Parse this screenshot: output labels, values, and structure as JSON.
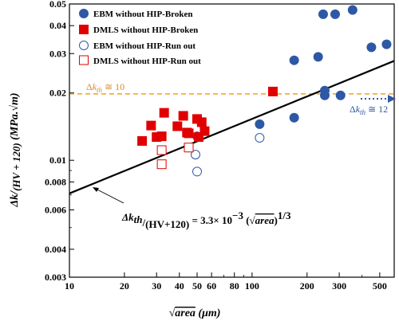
{
  "chart_data": {
    "type": "scatter",
    "x_scale": "log",
    "y_scale": "log",
    "xlim": [
      10,
      600
    ],
    "ylim": [
      0.003,
      0.05
    ],
    "xlabel": "√area (μm)",
    "ylabel": "Δk/(HV + 120) (MPa.√m)",
    "x_ticks": [
      10,
      20,
      30,
      40,
      50,
      60,
      80,
      100,
      200,
      300,
      500
    ],
    "x_tick_labels": [
      "10",
      "20",
      "30",
      "40",
      "50",
      "60",
      "80",
      "100",
      "200",
      "300",
      "500"
    ],
    "y_ticks": [
      0.003,
      0.004,
      0.006,
      0.008,
      0.01,
      0.02,
      0.03,
      0.04,
      0.05
    ],
    "y_tick_labels": [
      "0.003",
      "0.004",
      "0.006",
      "0.008",
      "0.01",
      "0.02",
      "0.03",
      "0.04",
      "0.05"
    ],
    "legend": {
      "position": "top-left",
      "entries": [
        "EBM without HIP-Broken",
        "DMLS without HIP-Broken",
        "EBM without HIP-Run out",
        "DMLS without HIP-Run out"
      ]
    },
    "series": [
      {
        "name": "EBM without HIP-Broken",
        "marker": "circle",
        "filled": true,
        "color": "#2e58a6",
        "x": [
          50,
          110,
          170,
          170,
          230,
          245,
          250,
          250,
          285,
          305,
          355,
          450,
          545
        ],
        "y": [
          0.0128,
          0.0145,
          0.0155,
          0.028,
          0.029,
          0.045,
          0.0195,
          0.0205,
          0.045,
          0.0195,
          0.047,
          0.032,
          0.033
        ]
      },
      {
        "name": "DMLS without HIP-Broken",
        "marker": "square",
        "filled": true,
        "color": "#e00000",
        "x": [
          25,
          28,
          30,
          32,
          33,
          39,
          42,
          44,
          45,
          50,
          51,
          53,
          55,
          130
        ],
        "y": [
          0.0122,
          0.0143,
          0.0127,
          0.0128,
          0.0163,
          0.0142,
          0.0158,
          0.0133,
          0.0132,
          0.0153,
          0.0127,
          0.0148,
          0.0135,
          0.0203
        ]
      },
      {
        "name": "EBM without HIP-Run out",
        "marker": "circle",
        "filled": false,
        "color": "#2e58a6",
        "x": [
          49,
          50,
          110
        ],
        "y": [
          0.0106,
          0.0089,
          0.0126
        ]
      },
      {
        "name": "DMLS without HIP-Run out",
        "marker": "square",
        "filled": false,
        "color": "#e00000",
        "x": [
          32,
          32,
          45
        ],
        "y": [
          0.0111,
          0.0096,
          0.0114
        ]
      }
    ],
    "fit_line": {
      "equation": "Δk_th/(HV+120) = 3.3×10⁻³ (√area)^1/3",
      "coefficient": 0.0033,
      "exponent": 0.3333,
      "color": "#000000"
    },
    "reference_lines": [
      {
        "y": 0.0198,
        "label": "Δk_th ≅ 10",
        "color": "#f0a020",
        "style": "dashed"
      }
    ],
    "annotations": [
      {
        "text": "Δk_th ≅ 12",
        "color": "#2e58a6"
      }
    ]
  }
}
